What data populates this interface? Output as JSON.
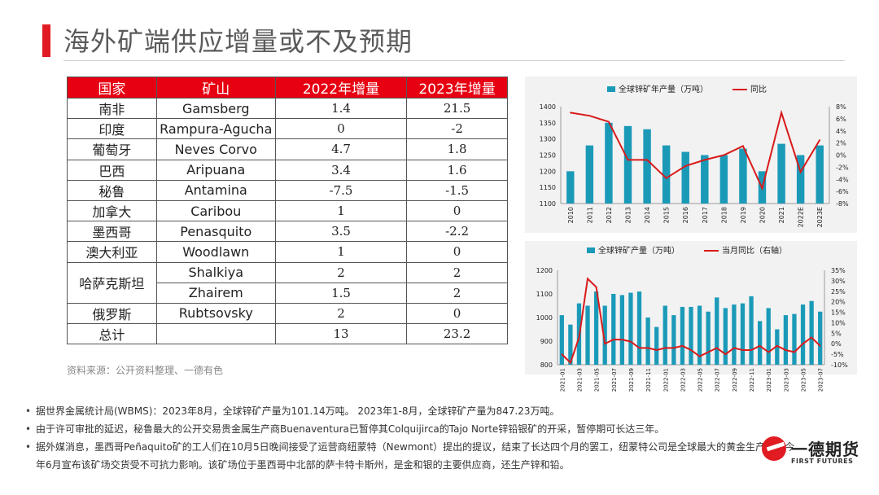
{
  "page": {
    "title": "海外矿端供应增量或不及预期",
    "source": "资料来源：公开资料整理、一德有色"
  },
  "table": {
    "headers": [
      "国家",
      "矿山",
      "2022年增量",
      "2023年增量"
    ],
    "rows": [
      {
        "country": "南非",
        "mine": "Gamsberg",
        "inc2022": "1.4",
        "inc2023": "21.5"
      },
      {
        "country": "印度",
        "mine": "Rampura-Agucha",
        "inc2022": "0",
        "inc2023": "-2"
      },
      {
        "country": "葡萄牙",
        "mine": "Neves Corvo",
        "inc2022": "4.7",
        "inc2023": "1.8"
      },
      {
        "country": "巴西",
        "mine": "Aripuana",
        "inc2022": "3.4",
        "inc2023": "1.6"
      },
      {
        "country": "秘鲁",
        "mine": "Antamina",
        "inc2022": "-7.5",
        "inc2023": "-1.5"
      },
      {
        "country": "加拿大",
        "mine": "Caribou",
        "inc2022": "1",
        "inc2023": "0"
      },
      {
        "country": "墨西哥",
        "mine": "Penasquito",
        "inc2022": "3.5",
        "inc2023": "-2.2"
      },
      {
        "country": "澳大利亚",
        "mine": "Woodlawn",
        "inc2022": "1",
        "inc2023": "0"
      },
      {
        "country": "哈萨克斯坦",
        "mine": "Shalkiya",
        "inc2022": "2",
        "inc2023": "2"
      },
      {
        "country": "",
        "mine": "Zhairem",
        "inc2022": "1.5",
        "inc2023": "2"
      },
      {
        "country": "俄罗斯",
        "mine": "Rubtsovsky",
        "inc2022": "2",
        "inc2023": "0"
      },
      {
        "country": "总计",
        "mine": "",
        "inc2022": "13",
        "inc2023": "23.2"
      }
    ]
  },
  "bullets": [
    "据世界金属统计局(WBMS)：2023年8月，全球锌矿产量为101.14万吨。 2023年1-8月，全球锌矿产量为847.23万吨。",
    "由于许可审批的延迟，秘鲁最大的公开交易贵金属生产商Buenaventura已暂停其Colquijirca的Tajo Norte锌铅银矿的开采，暂停期可长达三年。",
    "据外媒消息，墨西哥Peñaquito矿的工人们在10月5日晚间接受了运营商纽蒙特（Newmont）提出的提议，结束了长达四个月的罢工，纽蒙特公司是全球最大的黄金生产商，今年6月宣布该矿场交货受不可抗力影响。该矿场位于墨西哥中北部的萨卡特卡斯州，是金和银的主要供应商，还生产锌和铅。"
  ],
  "logo": {
    "cn": "一德期货",
    "en": "FIRST FUTURES"
  },
  "colors": {
    "bar": "#1b9ab8",
    "line": "#d91a1a",
    "header": "#e60012",
    "accent": "#e11b22"
  },
  "chart_data": [
    {
      "type": "bar",
      "categories": [
        "2010",
        "2011",
        "2012",
        "2013",
        "2014",
        "2015",
        "2016",
        "2017",
        "2018",
        "2019",
        "2020",
        "2021",
        "2022E",
        "2023E"
      ],
      "series": [
        {
          "name": "全球锌矿年产量（万吨）",
          "type": "bar",
          "axis": "left",
          "values": [
            1200,
            1280,
            1350,
            1340,
            1330,
            1280,
            1260,
            1250,
            1250,
            1270,
            1200,
            1285,
            1250,
            1280
          ]
        },
        {
          "name": "同比",
          "type": "line",
          "axis": "right",
          "values": [
            7.0,
            6.5,
            5.5,
            -0.8,
            -0.8,
            -3.8,
            -1.8,
            -0.8,
            0.0,
            1.5,
            -5.5,
            7.0,
            -2.8,
            2.5
          ]
        }
      ],
      "ylim": [
        1100,
        1400
      ],
      "yticks": [
        1100,
        1150,
        1200,
        1250,
        1300,
        1350,
        1400
      ],
      "y2lim": [
        -8,
        8
      ],
      "y2ticks": [
        8,
        6,
        4,
        2,
        0,
        -2,
        -4,
        -6,
        -8
      ],
      "y2tick_labels": [
        "8%",
        "6%",
        "4%",
        "2%",
        "0%",
        "-2%",
        "-4%",
        "-6%",
        "-8%"
      ],
      "legend": "top"
    },
    {
      "type": "bar",
      "categories": [
        "2021-01",
        "2021-02",
        "2021-03",
        "2021-04",
        "2021-05",
        "2021-06",
        "2021-07",
        "2021-08",
        "2021-09",
        "2021-10",
        "2021-11",
        "2021-12",
        "2022-01",
        "2022-02",
        "2022-03",
        "2022-04",
        "2022-05",
        "2022-06",
        "2022-07",
        "2022-08",
        "2022-09",
        "2022-10",
        "2022-11",
        "2022-12",
        "2023-01",
        "2023-02",
        "2023-03",
        "2023-04",
        "2023-05",
        "2023-06",
        "2023-07"
      ],
      "tick_labels": [
        "2021-01",
        "2021-03",
        "2021-05",
        "2021-07",
        "2021-09",
        "2021-11",
        "2022-01",
        "2022-03",
        "2022-05",
        "2022-07",
        "2022-09",
        "2022-11",
        "2023-01",
        "2023-03",
        "2023-05",
        "2023-07"
      ],
      "series": [
        {
          "name": "全球锌矿产量（万吨）",
          "type": "bar",
          "axis": "left",
          "values": [
            1010,
            970,
            1060,
            1050,
            1110,
            1050,
            1100,
            1095,
            1105,
            1110,
            1000,
            960,
            1050,
            1010,
            1045,
            1045,
            1050,
            1025,
            1085,
            1040,
            1055,
            1060,
            1090,
            985,
            1040,
            950,
            1010,
            1015,
            1055,
            1070,
            1025
          ]
        },
        {
          "name": "当月同比（右轴）",
          "type": "line",
          "axis": "right",
          "values": [
            -5,
            -9,
            3,
            31,
            27,
            0,
            2,
            2,
            1,
            -2,
            -2,
            -3,
            -2,
            -2,
            -1,
            -3,
            -6,
            -4,
            -2,
            -5,
            -2,
            -3,
            -3,
            -1,
            -4,
            -1,
            -3,
            -4,
            0,
            3,
            -1
          ]
        }
      ],
      "ylim": [
        800,
        1200
      ],
      "yticks": [
        800,
        900,
        1000,
        1100,
        1200
      ],
      "y2lim": [
        -10,
        35
      ],
      "y2ticks": [
        35,
        30,
        25,
        20,
        15,
        10,
        5,
        0,
        -5,
        -10
      ],
      "y2tick_labels": [
        "35%",
        "30%",
        "25%",
        "20%",
        "15%",
        "10%",
        "5%",
        "0%",
        "-5%",
        "-10%"
      ],
      "legend": "top"
    }
  ]
}
